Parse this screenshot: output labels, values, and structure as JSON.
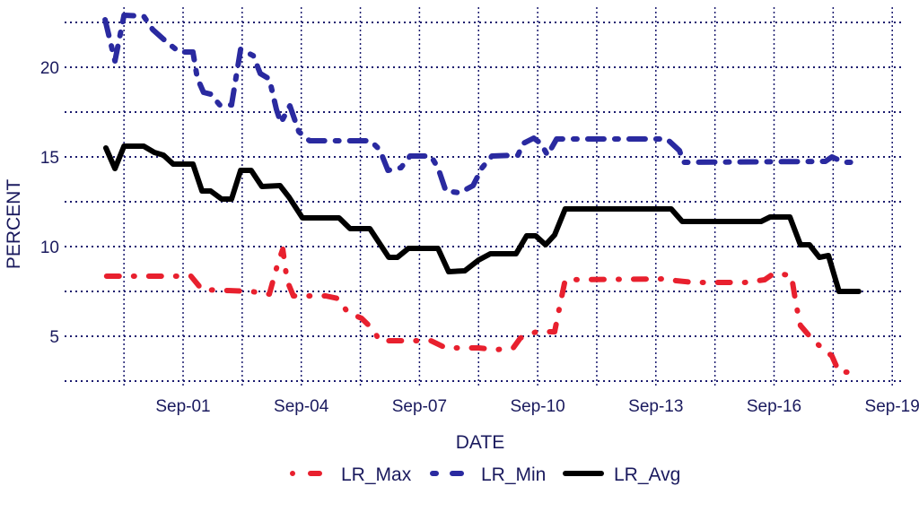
{
  "chart_data": {
    "type": "line",
    "title": "",
    "xlabel": "DATE",
    "ylabel": "PERCENT",
    "x_unit": "days since Sep-01",
    "xlim": [
      -2.6,
      18.2
    ],
    "ylim": [
      2.5,
      23.2
    ],
    "grid": true,
    "legend_position": "bottom",
    "x_ticks": [
      {
        "value": 0,
        "label": "Sep-01"
      },
      {
        "value": 3,
        "label": "Sep-04"
      },
      {
        "value": 6,
        "label": "Sep-07"
      },
      {
        "value": 9,
        "label": "Sep-10"
      },
      {
        "value": 12,
        "label": "Sep-13"
      },
      {
        "value": 15,
        "label": "Sep-16"
      },
      {
        "value": 18,
        "label": "Sep-19"
      }
    ],
    "y_ticks": [
      {
        "value": 5,
        "label": "5"
      },
      {
        "value": 10,
        "label": "10"
      },
      {
        "value": 15,
        "label": "15"
      },
      {
        "value": 20,
        "label": "20"
      }
    ],
    "series": [
      {
        "name": "LR_Max",
        "color": "#e8202e",
        "style": "dotdash",
        "points": [
          [
            -1.94,
            8.35
          ],
          [
            0.2,
            8.35
          ],
          [
            0.48,
            7.6
          ],
          [
            1.73,
            7.5
          ],
          [
            2.19,
            7.35
          ],
          [
            2.41,
            9.1
          ],
          [
            2.53,
            9.85
          ],
          [
            2.64,
            8.1
          ],
          [
            2.8,
            7.25
          ],
          [
            3.62,
            7.25
          ],
          [
            3.94,
            7.1
          ],
          [
            4.17,
            6.35
          ],
          [
            4.53,
            6.0
          ],
          [
            4.81,
            5.4
          ],
          [
            4.99,
            4.75
          ],
          [
            6.29,
            4.75
          ],
          [
            6.67,
            4.35
          ],
          [
            7.5,
            4.35
          ],
          [
            7.95,
            4.25
          ],
          [
            8.38,
            4.35
          ],
          [
            8.56,
            4.9
          ],
          [
            8.97,
            5.25
          ],
          [
            9.43,
            5.25
          ],
          [
            9.59,
            7.0
          ],
          [
            9.7,
            8.15
          ],
          [
            12.28,
            8.2
          ],
          [
            12.51,
            8.1
          ],
          [
            12.96,
            8.0
          ],
          [
            14.26,
            8.0
          ],
          [
            14.76,
            8.15
          ],
          [
            14.99,
            8.5
          ],
          [
            15.44,
            8.4
          ],
          [
            15.56,
            6.75
          ],
          [
            15.67,
            5.6
          ],
          [
            16.0,
            4.75
          ],
          [
            16.47,
            3.9
          ],
          [
            16.65,
            3.0
          ],
          [
            17.0,
            3.0
          ]
        ]
      },
      {
        "name": "LR_Min",
        "color": "#2a2aa0",
        "style": "longdash",
        "points": [
          [
            -1.98,
            22.65
          ],
          [
            -1.73,
            20.35
          ],
          [
            -1.5,
            22.9
          ],
          [
            -1.0,
            22.85
          ],
          [
            -0.77,
            22.1
          ],
          [
            -0.39,
            21.35
          ],
          [
            -0.09,
            20.85
          ],
          [
            0.25,
            20.85
          ],
          [
            0.36,
            19.4
          ],
          [
            0.52,
            18.6
          ],
          [
            0.7,
            18.5
          ],
          [
            0.93,
            17.9
          ],
          [
            1.23,
            17.9
          ],
          [
            1.46,
            21.0
          ],
          [
            1.78,
            20.65
          ],
          [
            1.96,
            19.65
          ],
          [
            2.19,
            19.35
          ],
          [
            2.37,
            17.65
          ],
          [
            2.48,
            16.9
          ],
          [
            2.71,
            17.85
          ],
          [
            2.94,
            16.4
          ],
          [
            3.21,
            15.9
          ],
          [
            4.76,
            15.9
          ],
          [
            4.99,
            15.4
          ],
          [
            5.2,
            14.25
          ],
          [
            5.53,
            14.4
          ],
          [
            5.76,
            15.05
          ],
          [
            6.29,
            15.05
          ],
          [
            6.47,
            14.4
          ],
          [
            6.67,
            13.1
          ],
          [
            7.02,
            13.0
          ],
          [
            7.36,
            13.4
          ],
          [
            7.59,
            14.4
          ],
          [
            7.84,
            15.05
          ],
          [
            8.5,
            15.1
          ],
          [
            8.63,
            15.75
          ],
          [
            8.9,
            16.05
          ],
          [
            9.08,
            15.75
          ],
          [
            9.25,
            15.1
          ],
          [
            9.48,
            16.0
          ],
          [
            12.28,
            16.0
          ],
          [
            12.6,
            15.35
          ],
          [
            12.7,
            14.7
          ],
          [
            16.3,
            14.75
          ],
          [
            16.47,
            15.0
          ],
          [
            16.77,
            14.7
          ],
          [
            17.15,
            14.7
          ]
        ]
      },
      {
        "name": "LR_Avg",
        "color": "#000000",
        "style": "solid",
        "points": [
          [
            -1.96,
            15.5
          ],
          [
            -1.73,
            14.35
          ],
          [
            -1.5,
            15.6
          ],
          [
            -1.0,
            15.6
          ],
          [
            -0.73,
            15.25
          ],
          [
            -0.5,
            15.1
          ],
          [
            -0.25,
            14.6
          ],
          [
            0.25,
            14.6
          ],
          [
            0.48,
            13.1
          ],
          [
            0.7,
            13.1
          ],
          [
            0.98,
            12.65
          ],
          [
            1.23,
            12.65
          ],
          [
            1.46,
            14.25
          ],
          [
            1.73,
            14.25
          ],
          [
            2.0,
            13.35
          ],
          [
            2.46,
            13.4
          ],
          [
            2.69,
            12.75
          ],
          [
            3.03,
            11.6
          ],
          [
            3.96,
            11.6
          ],
          [
            4.24,
            11.0
          ],
          [
            4.74,
            11.0
          ],
          [
            5.22,
            9.4
          ],
          [
            5.44,
            9.4
          ],
          [
            5.72,
            9.9
          ],
          [
            6.47,
            9.9
          ],
          [
            6.74,
            8.6
          ],
          [
            7.15,
            8.65
          ],
          [
            7.5,
            9.25
          ],
          [
            7.8,
            9.6
          ],
          [
            8.45,
            9.6
          ],
          [
            8.72,
            10.6
          ],
          [
            8.95,
            10.6
          ],
          [
            9.2,
            10.1
          ],
          [
            9.43,
            10.65
          ],
          [
            9.7,
            12.1
          ],
          [
            12.39,
            12.1
          ],
          [
            12.67,
            11.4
          ],
          [
            14.67,
            11.4
          ],
          [
            14.9,
            11.65
          ],
          [
            15.4,
            11.65
          ],
          [
            15.67,
            10.1
          ],
          [
            15.9,
            10.1
          ],
          [
            16.15,
            9.4
          ],
          [
            16.38,
            9.5
          ],
          [
            16.65,
            7.5
          ],
          [
            17.15,
            7.5
          ]
        ]
      }
    ]
  }
}
